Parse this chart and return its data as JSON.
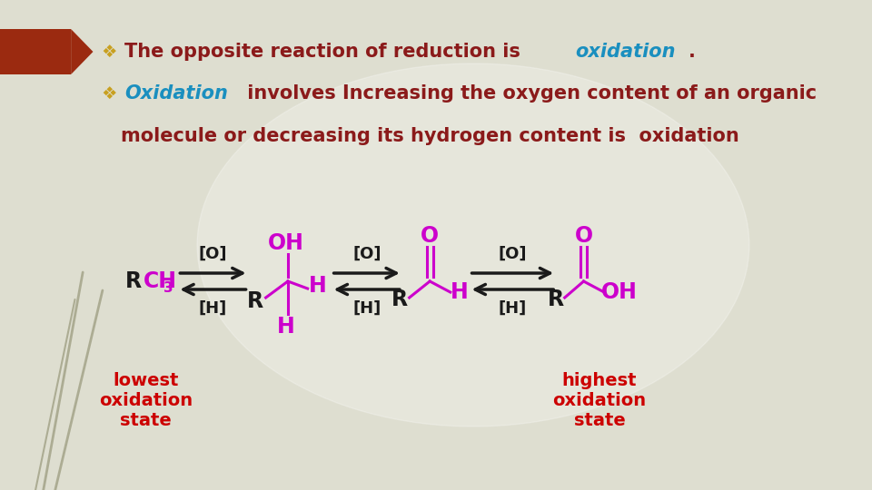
{
  "bg_color": "#deded0",
  "text_dark_red": "#8b1a1a",
  "text_cyan": "#1a8fbf",
  "magenta": "#cc00cc",
  "red_label": "#cc0000",
  "black": "#1a1a1a",
  "dark_red_box": "#9b2a10",
  "grass_color": "#8b8b6b",
  "bullet_color": "#c8a020",
  "line1_normal": "The opposite reaction of reduction is ",
  "line1_italic": "oxidation",
  "line1_end": ".",
  "line2_italic": "Oxidation",
  "line2_normal": " involves Increasing the oxygen content of an organic",
  "line3": "molecule or decreasing its hydrogen content is  oxidation",
  "lowest_label": "lowest\noxidation\nstate",
  "highest_label": "highest\noxidation\nstate"
}
